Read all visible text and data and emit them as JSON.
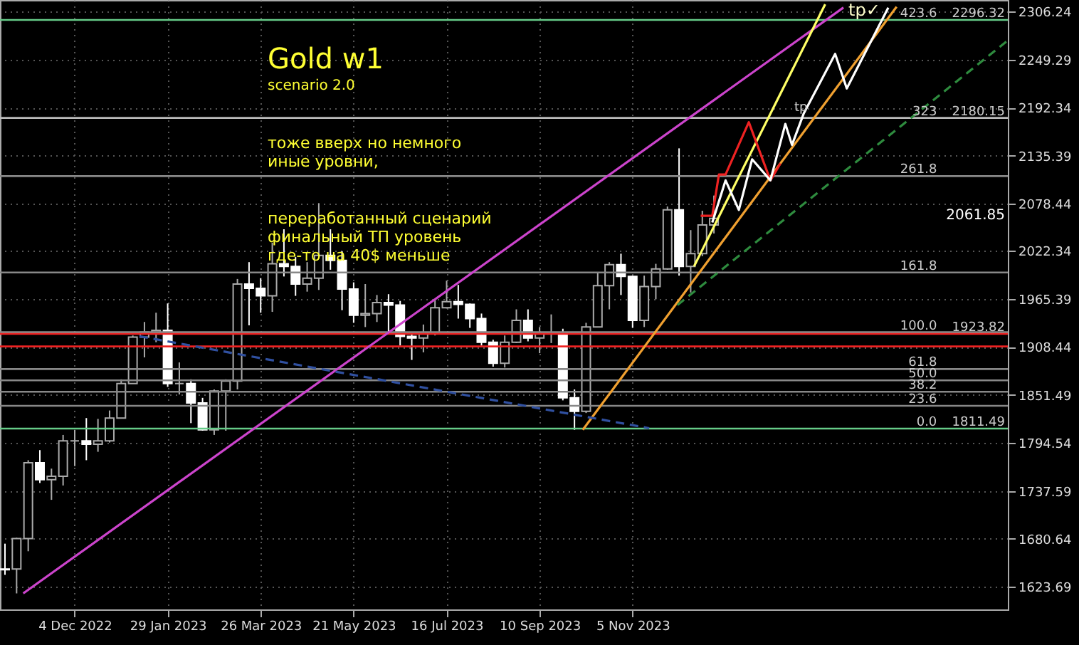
{
  "chart_data": {
    "type": "candlestick",
    "title": "Gold w1",
    "subtitle": "scenario 2.0",
    "x": [
      "2022-10-23",
      "2022-10-30",
      "2022-11-06",
      "2022-11-13",
      "2022-11-20",
      "2022-11-27",
      "2022-12-04",
      "2022-12-11",
      "2022-12-18",
      "2022-12-25",
      "2023-01-01",
      "2023-01-08",
      "2023-01-15",
      "2023-01-22",
      "2023-01-29",
      "2023-02-05",
      "2023-02-12",
      "2023-02-19",
      "2023-02-26",
      "2023-03-05",
      "2023-03-12",
      "2023-03-19",
      "2023-03-26",
      "2023-04-02",
      "2023-04-09",
      "2023-04-16",
      "2023-04-23",
      "2023-04-30",
      "2023-05-07",
      "2023-05-14",
      "2023-05-21",
      "2023-05-28",
      "2023-06-04",
      "2023-06-11",
      "2023-06-18",
      "2023-06-25",
      "2023-07-02",
      "2023-07-09",
      "2023-07-16",
      "2023-07-23",
      "2023-07-30",
      "2023-08-06",
      "2023-08-13",
      "2023-08-20",
      "2023-08-27",
      "2023-09-03",
      "2023-09-10",
      "2023-09-17",
      "2023-09-24",
      "2023-10-01",
      "2023-10-08",
      "2023-10-15",
      "2023-10-22",
      "2023-10-29",
      "2023-11-05",
      "2023-11-12",
      "2023-11-19",
      "2023-11-26",
      "2023-12-03",
      "2023-12-10",
      "2023-12-17",
      "2023-12-24"
    ],
    "ohlc": [
      [
        1645,
        1675,
        1638,
        1644
      ],
      [
        1645,
        1682,
        1616,
        1681
      ],
      [
        1681,
        1774,
        1666,
        1771
      ],
      [
        1771,
        1786,
        1747,
        1751
      ],
      [
        1751,
        1764,
        1727,
        1755
      ],
      [
        1755,
        1804,
        1744,
        1797
      ],
      [
        1797,
        1810,
        1767,
        1797
      ],
      [
        1797,
        1824,
        1774,
        1793
      ],
      [
        1793,
        1823,
        1784,
        1797
      ],
      [
        1797,
        1833,
        1795,
        1824
      ],
      [
        1824,
        1870,
        1824,
        1865
      ],
      [
        1865,
        1922,
        1865,
        1920
      ],
      [
        1920,
        1938,
        1896,
        1926
      ],
      [
        1926,
        1949,
        1914,
        1928
      ],
      [
        1928,
        1960,
        1861,
        1865
      ],
      [
        1865,
        1890,
        1852,
        1865
      ],
      [
        1865,
        1870,
        1818,
        1842
      ],
      [
        1842,
        1848,
        1809,
        1810
      ],
      [
        1810,
        1858,
        1804,
        1856
      ],
      [
        1856,
        1870,
        1809,
        1868
      ],
      [
        1868,
        1989,
        1858,
        1983
      ],
      [
        1983,
        2009,
        1934,
        1978
      ],
      [
        1978,
        1990,
        1949,
        1969
      ],
      [
        1969,
        2032,
        1950,
        2007
      ],
      [
        2007,
        2048,
        1992,
        2004
      ],
      [
        2004,
        2015,
        1969,
        1983
      ],
      [
        1983,
        2009,
        1974,
        1990
      ],
      [
        1990,
        2079,
        1976,
        2017
      ],
      [
        2017,
        2048,
        2000,
        2011
      ],
      [
        2011,
        2022,
        1952,
        1977
      ],
      [
        1977,
        1985,
        1937,
        1946
      ],
      [
        1946,
        1983,
        1932,
        1948
      ],
      [
        1948,
        1970,
        1938,
        1961
      ],
      [
        1961,
        1971,
        1925,
        1958
      ],
      [
        1958,
        1963,
        1910,
        1921
      ],
      [
        1921,
        1925,
        1893,
        1919
      ],
      [
        1919,
        1935,
        1902,
        1925
      ],
      [
        1925,
        1964,
        1922,
        1955
      ],
      [
        1955,
        1987,
        1954,
        1962
      ],
      [
        1962,
        1982,
        1942,
        1959
      ],
      [
        1959,
        1960,
        1931,
        1942
      ],
      [
        1942,
        1948,
        1910,
        1914
      ],
      [
        1914,
        1917,
        1885,
        1889
      ],
      [
        1889,
        1922,
        1884,
        1914
      ],
      [
        1914,
        1953,
        1913,
        1940
      ],
      [
        1940,
        1953,
        1915,
        1919
      ],
      [
        1919,
        1932,
        1901,
        1924
      ],
      [
        1924,
        1947,
        1913,
        1925
      ],
      [
        1925,
        1930,
        1845,
        1848
      ],
      [
        1848,
        1858,
        1810,
        1832
      ],
      [
        1832,
        1937,
        1830,
        1932
      ],
      [
        1932,
        1997,
        1932,
        1981
      ],
      [
        1981,
        2009,
        1953,
        2006
      ],
      [
        2006,
        2019,
        1970,
        1992
      ],
      [
        1992,
        1993,
        1931,
        1940
      ],
      [
        1940,
        1993,
        1932,
        1980
      ],
      [
        1980,
        2007,
        1965,
        2001
      ],
      [
        2001,
        2075,
        2000,
        2071
      ],
      [
        2071,
        2144,
        1993,
        2004
      ],
      [
        2004,
        2047,
        1973,
        2019
      ],
      [
        2019,
        2070,
        2016,
        2053
      ],
      [
        2053,
        2088,
        2043,
        2061
      ]
    ],
    "series": [
      {
        "type": "line",
        "color": "#cc44cc",
        "line_style": "solid",
        "x": [
          "2022-11-03",
          "2024-03-11"
        ],
        "values": [
          1616,
          2311
        ]
      },
      {
        "type": "line",
        "color": "#f0a030",
        "line_style": "solid",
        "x": [
          "2023-10-06",
          "2024-04-12"
        ],
        "values": [
          1810,
          2312
        ]
      },
      {
        "type": "line",
        "color": "#ffff66",
        "line_style": "solid",
        "x": [
          "2023-12-12",
          "2024-02-29"
        ],
        "values": [
          2004,
          2315
        ]
      },
      {
        "type": "line",
        "color": "#2e8b3e",
        "line_style": "dashed",
        "x": [
          "2023-12-02",
          "2024-06-18"
        ],
        "values": [
          1958,
          2272
        ]
      },
      {
        "type": "line",
        "color": "#3050a0",
        "line_style": "dashed",
        "x": [
          "2023-01-12",
          "2023-11-15"
        ],
        "values": [
          1921,
          1812
        ]
      },
      {
        "type": "line",
        "color": "#ee2222",
        "line_style": "solid",
        "x": [
          "2023-12-16",
          "2023-12-23",
          "2023-12-27",
          "2023-12-31",
          "2024-01-14",
          "2024-01-27",
          "2024-02-02"
        ],
        "values": [
          2064,
          2064,
          2113,
          2113,
          2175,
          2106,
          2126
        ]
      },
      {
        "type": "line",
        "color": "#ffffff",
        "line_style": "solid",
        "x": [
          "2023-12-23",
          "2023-12-31",
          "2024-01-08",
          "2024-01-16",
          "2024-01-27",
          "2024-02-05",
          "2024-02-09",
          "2024-02-16",
          "2024-03-06",
          "2024-03-13",
          "2024-04-07"
        ],
        "values": [
          2056,
          2106,
          2071,
          2131,
          2106,
          2173,
          2148,
          2185,
          2256,
          2215,
          2311
        ]
      }
    ],
    "xlim": [
      "2022-10-20",
      "2024-06-18"
    ],
    "xticks": [
      {
        "value": "2022-12-04",
        "label": "4 Dec 2022"
      },
      {
        "value": "2023-01-29",
        "label": "29 Jan 2023"
      },
      {
        "value": "2023-03-26",
        "label": "26 Mar 2023"
      },
      {
        "value": "2023-05-21",
        "label": "21 May 2023"
      },
      {
        "value": "2023-07-16",
        "label": "16 Jul 2023"
      },
      {
        "value": "2023-09-10",
        "label": "10 Sep 2023"
      },
      {
        "value": "2023-11-05",
        "label": "5 Nov 2023"
      }
    ],
    "ylim": [
      1597,
      2320
    ],
    "yticks": [
      1623.69,
      1680.64,
      1737.59,
      1794.54,
      1851.49,
      1908.44,
      1965.39,
      2022.34,
      2078.44,
      2135.39,
      2192.34,
      2249.29,
      2306.24
    ],
    "ref_lines": [
      {
        "axis": "y",
        "value": 1811.49,
        "color": "#66cc88"
      },
      {
        "axis": "y",
        "value": 1838.5,
        "color": "#888888"
      },
      {
        "axis": "y",
        "value": 1855.2,
        "color": "#888888"
      },
      {
        "axis": "y",
        "value": 1868.7,
        "color": "#888888"
      },
      {
        "axis": "y",
        "value": 1882.2,
        "color": "#888888"
      },
      {
        "axis": "y",
        "value": 1925.9,
        "color": "#888888"
      },
      {
        "axis": "y",
        "value": 1996.7,
        "color": "#888888"
      },
      {
        "axis": "y",
        "value": 2111.1,
        "color": "#888888"
      },
      {
        "axis": "y",
        "value": 2180.15,
        "color": "#bbbbbb"
      },
      {
        "axis": "y",
        "value": 2296.32,
        "color": "#66cc88"
      },
      {
        "axis": "y",
        "value": 1923.82,
        "color": "#ee2222"
      },
      {
        "axis": "y",
        "value": 1909,
        "color": "#ee2222"
      }
    ],
    "annotations": [
      "тоже вверх но немного\nиные уровни,",
      "переработанный сценарий\nфинальный ТП уровень\nгде-то на 40$ меньше",
      "tp✓",
      "2061.85",
      {
        "text": "tp",
        "x": "2024-02-20",
        "y": 2185
      },
      {
        "text": "2296.32",
        "x": "2024-06-18",
        "y": 2296.32
      },
      {
        "text": "2180.15",
        "x": "2024-06-18",
        "y": 2180.15
      },
      {
        "text": "1923.82",
        "x": "2024-06-18",
        "y": 1923.82
      },
      {
        "text": "1811.49",
        "x": "2024-06-18",
        "y": 1811.49
      },
      {
        "text": "0.0",
        "x": "2024-05-08",
        "y": 1811.49
      },
      {
        "text": "23.6",
        "x": "2024-05-08",
        "y": 1838.5
      },
      {
        "text": "38.2",
        "x": "2024-05-08",
        "y": 1855.2
      },
      {
        "text": "50.0",
        "x": "2024-05-08",
        "y": 1868.7
      },
      {
        "text": "61.8",
        "x": "2024-05-08",
        "y": 1882.2
      },
      {
        "text": "100.0",
        "x": "2024-05-08",
        "y": 1925.9
      },
      {
        "text": "161.8",
        "x": "2024-05-08",
        "y": 1996.7
      },
      {
        "text": "261.8",
        "x": "2024-05-08",
        "y": 2111.1
      },
      {
        "text": "323",
        "x": "2024-05-08",
        "y": 2180.15
      },
      {
        "text": "423.6",
        "x": "2024-05-08",
        "y": 2296.32
      }
    ],
    "grid": true
  }
}
